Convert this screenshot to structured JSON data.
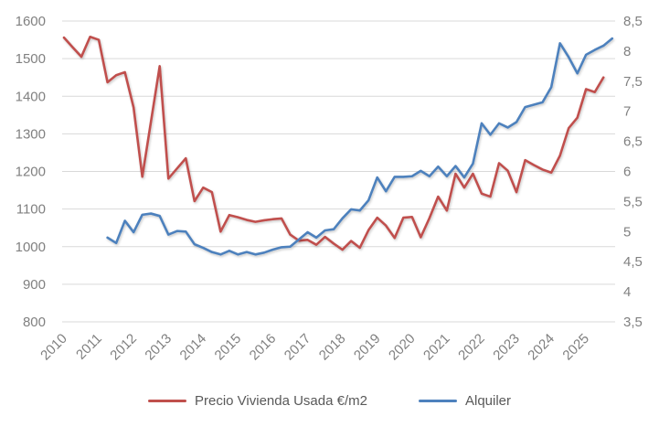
{
  "chart_data": {
    "type": "line",
    "title": "",
    "frequency": "quarterly",
    "grid": true,
    "legend_position": "bottom",
    "x_year_labels": [
      "2010",
      "2011",
      "2012",
      "2013",
      "2014",
      "2015",
      "2016",
      "2017",
      "2018",
      "2019",
      "2020",
      "2021",
      "2022",
      "2023",
      "2024",
      "2025"
    ],
    "left_axis": {
      "min": 800,
      "max": 1600,
      "step": 100,
      "tick_labels": [
        "1600",
        "1500",
        "1400",
        "1300",
        "1200",
        "1100",
        "1000",
        "900",
        "800"
      ]
    },
    "right_axis": {
      "min": 3.5,
      "max": 8.5,
      "step": 0.5,
      "tick_labels": [
        "8,5",
        "8",
        "7,5",
        "7",
        "6,5",
        "6",
        "5,5",
        "5",
        "4,5",
        "4",
        "3,5"
      ]
    },
    "series": [
      {
        "name": "Precio Vivienda Usada €/m2",
        "color": "#C0504D",
        "axis": "left",
        "start_quarter_index": 0,
        "first_point": "2010Q1",
        "values": [
          1556,
          1530,
          1505,
          1558,
          1550,
          1437,
          1456,
          1464,
          1370,
          1186,
          1333,
          1480,
          1181,
          1208,
          1235,
          1121,
          1157,
          1145,
          1040,
          1084,
          1078,
          1071,
          1066,
          1070,
          1073,
          1075,
          1032,
          1016,
          1018,
          1005,
          1026,
          1008,
          992,
          1015,
          997,
          1044,
          1077,
          1056,
          1023,
          1077,
          1079,
          1025,
          1076,
          1133,
          1096,
          1194,
          1157,
          1194,
          1141,
          1133,
          1222,
          1202,
          1145,
          1230,
          1217,
          1205,
          1197,
          1242,
          1315,
          1343,
          1419,
          1411,
          1450
        ]
      },
      {
        "name": "Alquiler",
        "color": "#4E81BD",
        "axis": "right",
        "start_quarter_index": 5,
        "first_point": "2011Q2",
        "values": [
          4.9,
          4.81,
          5.18,
          4.99,
          5.28,
          5.3,
          5.26,
          4.95,
          5.01,
          5.0,
          4.79,
          4.73,
          4.66,
          4.62,
          4.68,
          4.62,
          4.66,
          4.62,
          4.65,
          4.7,
          4.74,
          4.75,
          4.87,
          4.99,
          4.9,
          5.02,
          5.04,
          5.22,
          5.37,
          5.35,
          5.52,
          5.9,
          5.67,
          5.91,
          5.91,
          5.92,
          6.01,
          5.92,
          6.08,
          5.92,
          6.09,
          5.9,
          6.13,
          6.8,
          6.61,
          6.8,
          6.73,
          6.82,
          7.07,
          7.11,
          7.15,
          7.4,
          8.13,
          7.9,
          7.63,
          7.94,
          8.02,
          8.09,
          8.21
        ]
      }
    ]
  },
  "legend": {
    "items": [
      {
        "label": "Precio Vivienda Usada €/m2",
        "color": "#C0504D"
      },
      {
        "label": "Alquiler",
        "color": "#4E81BD"
      }
    ]
  },
  "style_colors": {
    "gridline": "#D9D9D9",
    "axis_label": "#808080"
  }
}
